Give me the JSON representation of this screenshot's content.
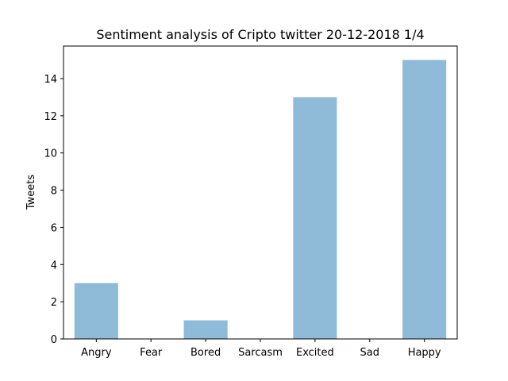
{
  "chart_data": {
    "type": "bar",
    "title": "Sentiment analysis of Cripto twitter 20-12-2018 1/4",
    "xlabel": "",
    "ylabel": "Tweets",
    "categories": [
      "Angry",
      "Fear",
      "Bored",
      "Sarcasm",
      "Excited",
      "Sad",
      "Happy"
    ],
    "values": [
      3,
      0,
      1,
      0,
      13,
      0,
      15
    ],
    "yticks": [
      0,
      2,
      4,
      6,
      8,
      10,
      12,
      14
    ],
    "ylim": [
      0,
      15.75
    ],
    "bar_color": "#8fbbd9",
    "grid": false,
    "legend": "none"
  }
}
